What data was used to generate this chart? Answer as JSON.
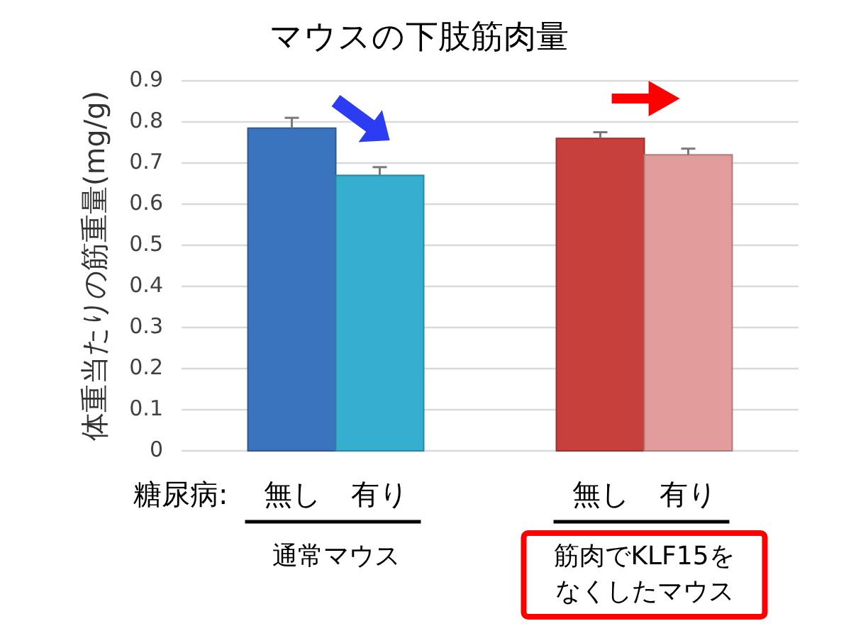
{
  "chart_data": {
    "type": "bar",
    "title": "マウスの下肢筋肉量",
    "ylabel": "体重当たりの筋重量(mg/g)",
    "legend_title": "糖尿病:",
    "categories": [
      "通常マウス",
      "筋肉でKLF15をなくしたマウス"
    ],
    "series": [
      {
        "name": "無し",
        "colors": [
          "#3a73be",
          "#c8403c"
        ],
        "values": [
          0.785,
          0.76
        ],
        "errors": [
          [
            0.785,
            0.81
          ],
          [
            0.76,
            0.775
          ]
        ]
      },
      {
        "name": "有り",
        "colors": [
          "#35aed0",
          "#e29c9b"
        ],
        "values": [
          0.67,
          0.72
        ],
        "errors": [
          [
            0.67,
            0.69
          ],
          [
            0.72,
            0.735
          ]
        ]
      }
    ],
    "ylim": [
      0,
      0.9
    ],
    "yticks": [
      0,
      0.1,
      0.2,
      0.3,
      0.4,
      0.5,
      0.6,
      0.7,
      0.8,
      0.9
    ],
    "grid": "y"
  }
}
